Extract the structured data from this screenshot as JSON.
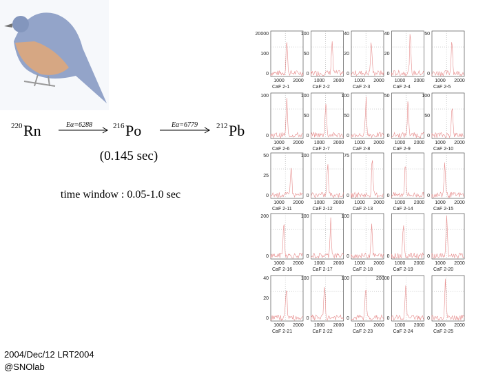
{
  "decay": {
    "nuclides": [
      {
        "mass": "220",
        "symbol": "Rn"
      },
      {
        "mass": "216",
        "symbol": "Po"
      },
      {
        "mass": "212",
        "symbol": "Pb"
      }
    ],
    "arrows": [
      "Eα=6288",
      "Eα=6779"
    ],
    "halflife": "(0.145 sec)"
  },
  "time_window": "time window : 0.05-1.0 sec",
  "footer": [
    "2004/Dec/12 LRT2004",
    "@SNOlab"
  ],
  "xticks": [
    "1000",
    "2000"
  ],
  "panels": [
    {
      "label": "CaF 2-1",
      "yticks": [
        "20000",
        "100",
        "0"
      ]
    },
    {
      "label": "CaF 2-2",
      "yticks": [
        "100",
        "50",
        "0"
      ]
    },
    {
      "label": "CaF 2-3",
      "yticks": [
        "40",
        "20",
        "0"
      ]
    },
    {
      "label": "CaF 2-4",
      "yticks": [
        "40",
        "20",
        "0"
      ]
    },
    {
      "label": "CaF 2-5",
      "yticks": [
        "50",
        "0"
      ]
    },
    {
      "label": "CaF 2-6",
      "yticks": [
        "100",
        "0"
      ]
    },
    {
      "label": "CaF 2-7",
      "yticks": [
        "100",
        "50",
        "0"
      ]
    },
    {
      "label": "CaF 2-8",
      "yticks": [
        "100",
        "50",
        "0"
      ]
    },
    {
      "label": "CaF 2-9",
      "yticks": [
        "50",
        "0"
      ]
    },
    {
      "label": "CaF 2-10",
      "yticks": [
        "100",
        "50",
        "0"
      ]
    },
    {
      "label": "CaF 2-11",
      "yticks": [
        "50",
        "25",
        "0"
      ]
    },
    {
      "label": "CaF 2-12",
      "yticks": [
        "100",
        "0"
      ]
    },
    {
      "label": "CaF 2-13",
      "yticks": [
        "75",
        "0"
      ]
    },
    {
      "label": "CaF 2-14",
      "yticks": [
        "0"
      ]
    },
    {
      "label": "CaF 2-15",
      "yticks": [
        "0"
      ]
    },
    {
      "label": "CaF 2-16",
      "yticks": [
        "200",
        "0"
      ]
    },
    {
      "label": "CaF 2-17",
      "yticks": [
        "100",
        "0"
      ]
    },
    {
      "label": "CaF 2-18",
      "yticks": [
        "100",
        "0"
      ]
    },
    {
      "label": "CaF 2-19",
      "yticks": [
        "0"
      ]
    },
    {
      "label": "CaF 2-20",
      "yticks": [
        "0"
      ]
    },
    {
      "label": "CaF 2-21",
      "yticks": [
        "40",
        "20",
        "0"
      ]
    },
    {
      "label": "CaF 2-22",
      "yticks": [
        "100",
        "0"
      ]
    },
    {
      "label": "CaF 2-23",
      "yticks": [
        "100",
        "0"
      ]
    },
    {
      "label": "CaF 2-24",
      "yticks": [
        "20000",
        "0"
      ]
    },
    {
      "label": "CaF 2-25",
      "yticks": [
        "0"
      ]
    }
  ]
}
